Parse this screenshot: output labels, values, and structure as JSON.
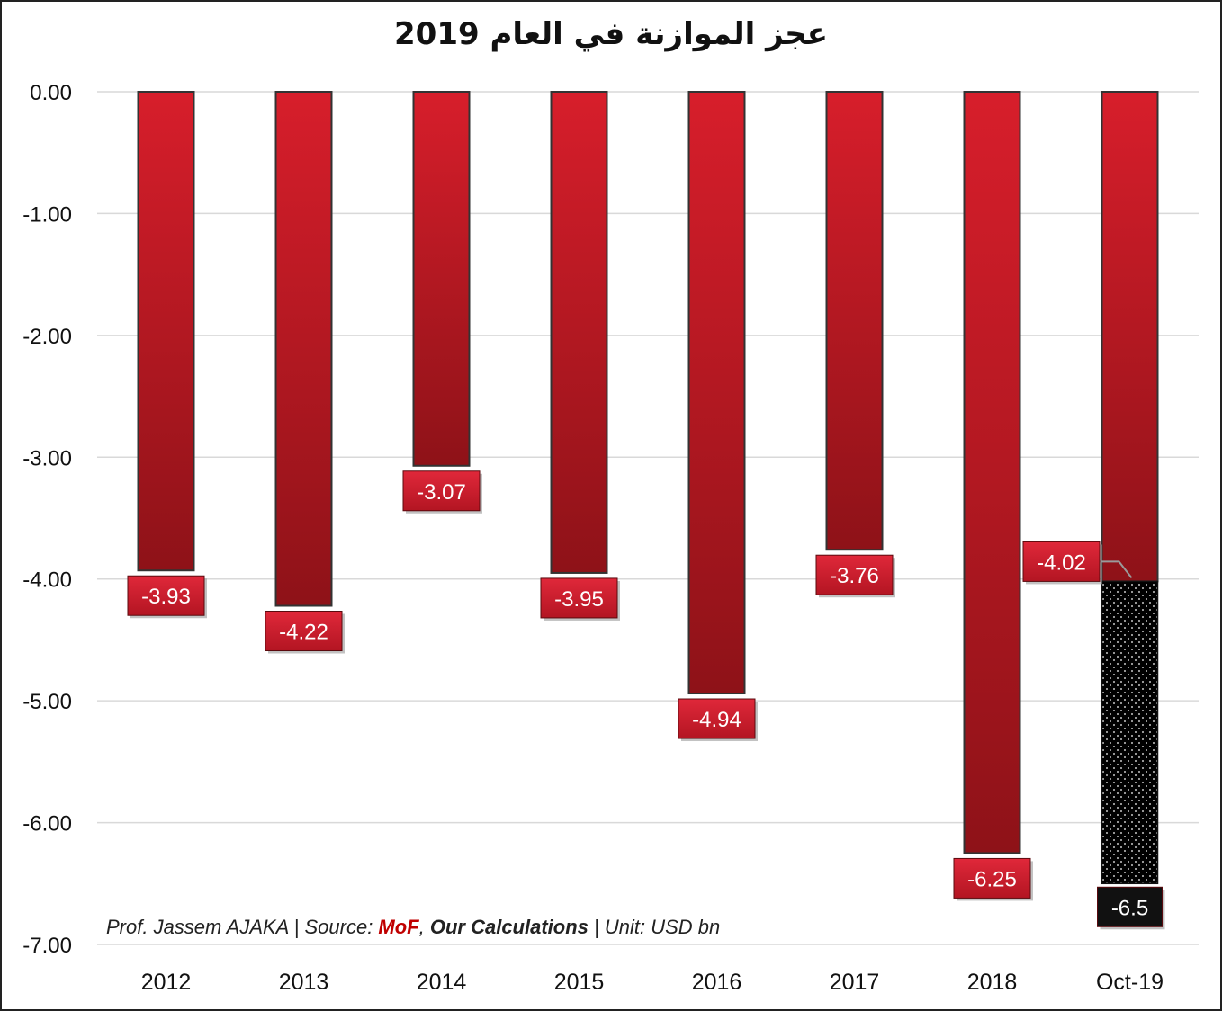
{
  "chart_data": {
    "type": "bar",
    "title": "عجز الموازنة في العام 2019",
    "categories": [
      "2012",
      "2013",
      "2014",
      "2015",
      "2016",
      "2017",
      "2018",
      "Oct-19"
    ],
    "series": [
      {
        "values": [
          -3.93,
          -4.22,
          -3.07,
          -3.95,
          -4.94,
          -3.76,
          -6.25,
          -4.02
        ],
        "labels": [
          "-3.93",
          "-4.22",
          "-3.07",
          "-3.95",
          "-4.94",
          "-3.76",
          "-6.25",
          "-4.02"
        ],
        "color": "#d71e2b"
      },
      {
        "values": [
          null,
          null,
          null,
          null,
          null,
          null,
          null,
          -6.5
        ],
        "labels": [
          "",
          "",
          "",
          "",
          "",
          "",
          "",
          "-6.5"
        ],
        "color": "#000000"
      }
    ],
    "yticks": [
      "0.00",
      "-1.00",
      "-2.00",
      "-3.00",
      "-4.00",
      "-5.00",
      "-6.00",
      "-7.00"
    ],
    "ylim": [
      -7,
      0
    ],
    "xlabel": "",
    "ylabel": "",
    "grid": true,
    "legend": "none"
  },
  "footnote": {
    "prefix": "Prof. Jassem AJAKA  |  Source: ",
    "source": "MoF",
    "sep": ", ",
    "calc": "Our Calculations",
    "unit": "  |  Unit: USD bn"
  },
  "colors": {
    "bar": "#d71e2b",
    "bar_dark": "#8e1218",
    "projection": "#000000",
    "grid": "#d9d9d9"
  }
}
